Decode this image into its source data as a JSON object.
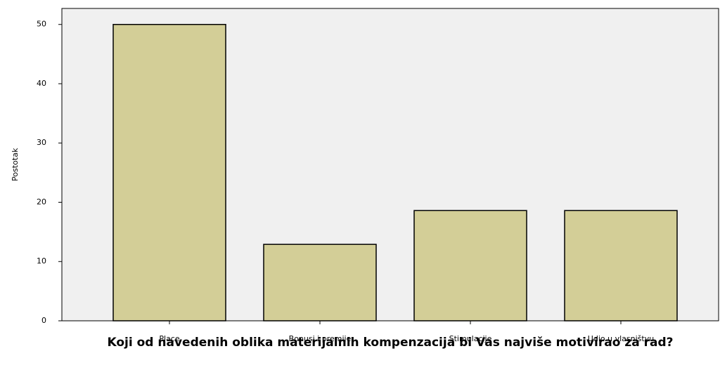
{
  "chart_data": {
    "type": "bar",
    "x_label": "Koji od navedenih oblika materijalnih kompenzacija bi Vas najviše motivirao za rad?",
    "y_label": "Postotak",
    "categories": [
      "Place",
      "Bonusi i premije",
      "Stimulacije",
      "Udio u vlasništvu"
    ],
    "values": [
      50,
      12.9,
      18.6,
      18.6
    ],
    "color": "#d3ce97",
    "ylim": [
      0,
      52.7
    ],
    "yticks": [
      0,
      10,
      20,
      30,
      40,
      50
    ],
    "grid": false
  }
}
